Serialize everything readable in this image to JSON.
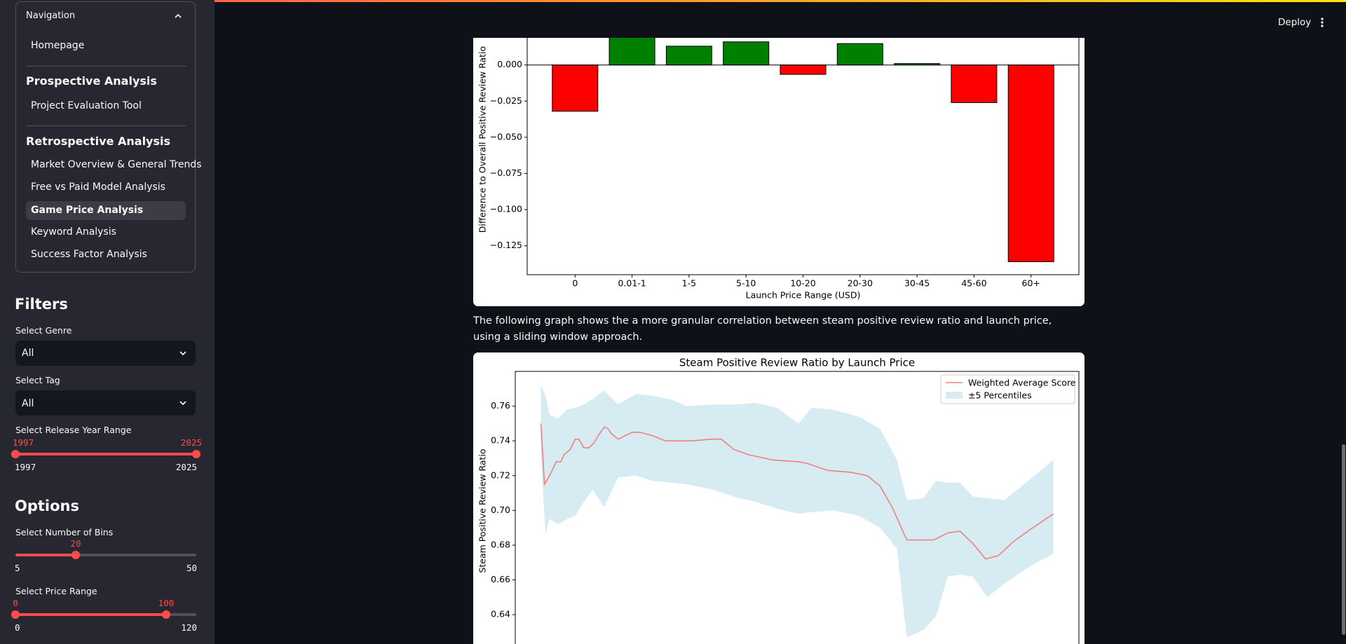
{
  "header": {
    "deploy": "Deploy"
  },
  "sidebar": {
    "navigation": {
      "title": "Navigation",
      "items": [
        "Homepage"
      ],
      "sections": [
        {
          "title": "Prospective Analysis",
          "items": [
            "Project Evaluation Tool"
          ]
        },
        {
          "title": "Retrospective Analysis",
          "items": [
            "Market Overview & General Trends",
            "Free vs Paid Model Analysis",
            "Game Price Analysis",
            "Keyword Analysis",
            "Success Factor Analysis"
          ]
        }
      ]
    },
    "filters": {
      "title": "Filters",
      "genre": {
        "label": "Select Genre",
        "value": "All"
      },
      "tag": {
        "label": "Select Tag",
        "value": "All"
      },
      "year_range": {
        "label": "Select Release Year Range",
        "value": [
          1997,
          2025
        ],
        "min": 1997,
        "max": 2025
      }
    },
    "options": {
      "title": "Options",
      "bins": {
        "label": "Select Number of Bins",
        "value": 20,
        "min": 5,
        "max": 50
      },
      "price_range": {
        "label": "Select Price Range",
        "value": [
          0,
          100
        ],
        "min": 0,
        "max": 120
      }
    }
  },
  "main": {
    "paragraph": "The following graph shows the a more granular correlation between steam positive review ratio and launch price, using a sliding window approach."
  },
  "chart_data": [
    {
      "type": "bar",
      "xlabel": "Launch Price Range (USD)",
      "ylabel": "Difference to Overall Positive Review Ratio",
      "categories": [
        "0",
        "0.01-1",
        "1-5",
        "5-10",
        "10-20",
        "20-30",
        "30-45",
        "45-60",
        "60+"
      ],
      "values": [
        -0.032,
        0.022,
        0.013,
        0.016,
        -0.0065,
        0.0148,
        0.001,
        -0.026,
        -0.136
      ],
      "positive_color": "#008000",
      "negative_color": "#ff0000",
      "ylim": [
        -0.145,
        0.03
      ],
      "yticks": [
        {
          "value": 0,
          "label": "0.000"
        },
        {
          "value": -0.025,
          "label": "−0.025"
        },
        {
          "value": -0.05,
          "label": "−0.050"
        },
        {
          "value": -0.075,
          "label": "−0.075"
        },
        {
          "value": -0.1,
          "label": "−0.100"
        },
        {
          "value": -0.125,
          "label": "−0.125"
        }
      ]
    },
    {
      "type": "line",
      "title": "Steam Positive Review Ratio by Launch Price",
      "ylabel": "Steam Positive Review Ratio",
      "xlim": [
        -5,
        105
      ],
      "ylim": [
        0.62,
        0.78
      ],
      "yticks": [
        0.64,
        0.66,
        0.68,
        {
          "value": 0.7,
          "label": "0.70"
        },
        0.72,
        0.74,
        0.76
      ],
      "legend": "upper right",
      "series": [
        {
          "name": "Weighted Average Score",
          "color": "#f08080",
          "x": [
            0,
            0.7,
            1.7,
            3.0,
            3.9,
            4.5,
            5.7,
            6.7,
            7.4,
            8.4,
            9.4,
            10.4,
            11.4,
            12.4,
            13.1,
            13.8,
            15.1,
            16.4,
            17.9,
            19.3,
            21.8,
            24.3,
            29.5,
            33.2,
            35.2,
            37.7,
            40.6,
            45.3,
            50.3,
            52.0,
            56.0,
            60.3,
            63.7,
            66.2,
            68.7,
            71.4,
            76.7,
            79.4,
            81.8,
            84.3,
            86.8,
            89.3,
            92.2,
            95.5,
            100
          ],
          "values": [
            0.75,
            0.715,
            0.72,
            0.728,
            0.728,
            0.732,
            0.735,
            0.741,
            0.741,
            0.736,
            0.736,
            0.739,
            0.744,
            0.748,
            0.747,
            0.744,
            0.741,
            0.743,
            0.745,
            0.745,
            0.743,
            0.74,
            0.74,
            0.741,
            0.741,
            0.735,
            0.732,
            0.729,
            0.728,
            0.727,
            0.723,
            0.722,
            0.72,
            0.714,
            0.701,
            0.683,
            0.683,
            0.687,
            0.688,
            0.681,
            0.672,
            0.674,
            0.682,
            0.689,
            0.698
          ]
        }
      ],
      "band": {
        "name": "±5 Percentiles",
        "color": "#add8e6",
        "x": [
          0,
          0.9,
          1.7,
          3.4,
          5.1,
          6.7,
          8.4,
          10.1,
          12.3,
          15.1,
          18.5,
          21.8,
          25.2,
          28.5,
          33.5,
          38.6,
          41.9,
          46.1,
          50.3,
          52.8,
          57.0,
          62.0,
          66.2,
          69.5,
          71.4,
          74.6,
          77.1,
          79.4,
          81.8,
          84.3,
          87.1,
          90.5,
          95.5,
          100
        ],
        "upper": [
          0.772,
          0.766,
          0.755,
          0.753,
          0.758,
          0.759,
          0.761,
          0.764,
          0.769,
          0.761,
          0.767,
          0.766,
          0.764,
          0.76,
          0.761,
          0.761,
          0.762,
          0.759,
          0.75,
          0.759,
          0.758,
          0.754,
          0.747,
          0.729,
          0.706,
          0.707,
          0.717,
          0.716,
          0.716,
          0.708,
          0.707,
          0.706,
          0.718,
          0.729
        ],
        "lower": [
          0.732,
          0.687,
          0.695,
          0.692,
          0.695,
          0.697,
          0.705,
          0.712,
          0.702,
          0.719,
          0.72,
          0.717,
          0.716,
          0.715,
          0.712,
          0.707,
          0.705,
          0.701,
          0.698,
          0.699,
          0.7,
          0.697,
          0.69,
          0.678,
          0.627,
          0.631,
          0.639,
          0.662,
          0.663,
          0.662,
          0.65,
          0.658,
          0.668,
          0.675
        ]
      }
    }
  ]
}
